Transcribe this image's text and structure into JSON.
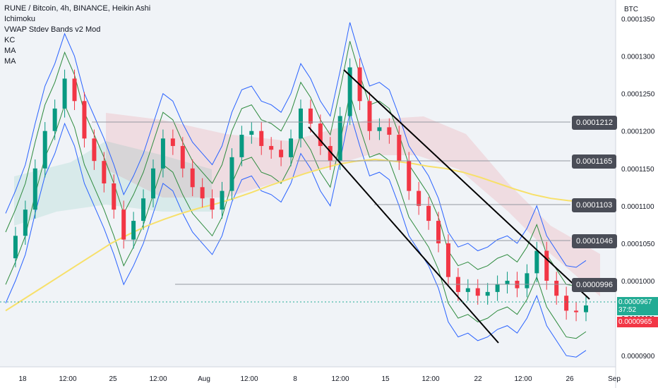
{
  "legend": {
    "symbol": "RUNE / Bitcoin, 4h, BINANCE, Heikin Ashi",
    "indicators": [
      "Ichimoku",
      "VWAP Stdev Bands v2 Mod",
      "KC",
      "MA",
      "MA"
    ]
  },
  "currency": "BTC",
  "y_ticks": [
    "0.0001350",
    "0.0001300",
    "0.0001250",
    "0.0001200",
    "0.0001150",
    "0.0001100",
    "0.0001050",
    "0.0001000",
    "0.0000950",
    "0.0000900"
  ],
  "x_ticks": [
    "18",
    "12:00",
    "25",
    "12:00",
    "Aug",
    "12:00",
    "8",
    "12:00",
    "15",
    "12:00",
    "22",
    "12:00",
    "26",
    "Sep"
  ],
  "price_levels": [
    "0.0001212",
    "0.0001165",
    "0.0001103",
    "0.0001046",
    "0.0000996"
  ],
  "last_price": {
    "price": "0.0000967",
    "countdown": "37:52",
    "low": "0.0000965"
  },
  "colors": {
    "bear": "#f23645",
    "bull": "#089981",
    "trend": "#000000",
    "ma_yellow": "#f7e06a",
    "band_blue": "#2962ff",
    "band_green": "#2e8b3e"
  },
  "chart_data": {
    "type": "candlestick",
    "title": "RUNE / Bitcoin, 4h, BINANCE, Heikin Ashi",
    "ylim": [
      8.85e-05,
      0.0001375
    ],
    "series": [
      {
        "name": "price",
        "values": [
          0.000103,
          0.000106,
          0.0001095,
          0.000115,
          0.00012,
          0.000123,
          0.000127,
          0.000124,
          0.000119,
          0.000116,
          0.000113,
          0.0001095,
          0.0001055,
          0.000108,
          0.000111,
          0.000115,
          0.000119,
          0.000118,
          0.000115,
          0.0001125,
          0.000111,
          0.0001095,
          0.000112,
          0.0001165,
          0.0001195,
          0.00012,
          0.000118,
          0.0001175,
          0.0001165,
          0.000119,
          0.000123,
          0.000121,
          0.000118,
          0.000116,
          0.000122,
          0.0001285,
          0.000124,
          0.00012,
          0.0001205,
          0.0001195,
          0.000116,
          0.000112,
          0.00011,
          0.000108,
          0.000105,
          0.0001005,
          9.85e-05,
          9.9e-05,
          9.8e-05,
          9.85e-05,
          9.95e-05,
          0.0001,
          9.9e-05,
          0.000101,
          0.000104,
          0.0001,
          9.8e-05,
          9.6e-05,
          9.58e-05,
          9.67e-05
        ]
      },
      {
        "name": "MA",
        "values": [
          9.6e-05,
          9.75e-05,
          9.9e-05,
          0.0001005,
          0.000102,
          0.0001035,
          0.000105,
          0.0001062,
          0.0001073,
          0.0001082,
          0.000109,
          0.0001097,
          0.0001103,
          0.000111,
          0.0001118,
          0.0001127,
          0.0001135,
          0.0001143,
          0.000115,
          0.0001156,
          0.000116,
          0.0001162,
          0.000116,
          0.0001157,
          0.0001153,
          0.000115,
          0.0001145,
          0.0001138,
          0.000113,
          0.0001122,
          0.0001115,
          0.000111,
          0.0001107,
          0.0001105
        ]
      }
    ]
  }
}
